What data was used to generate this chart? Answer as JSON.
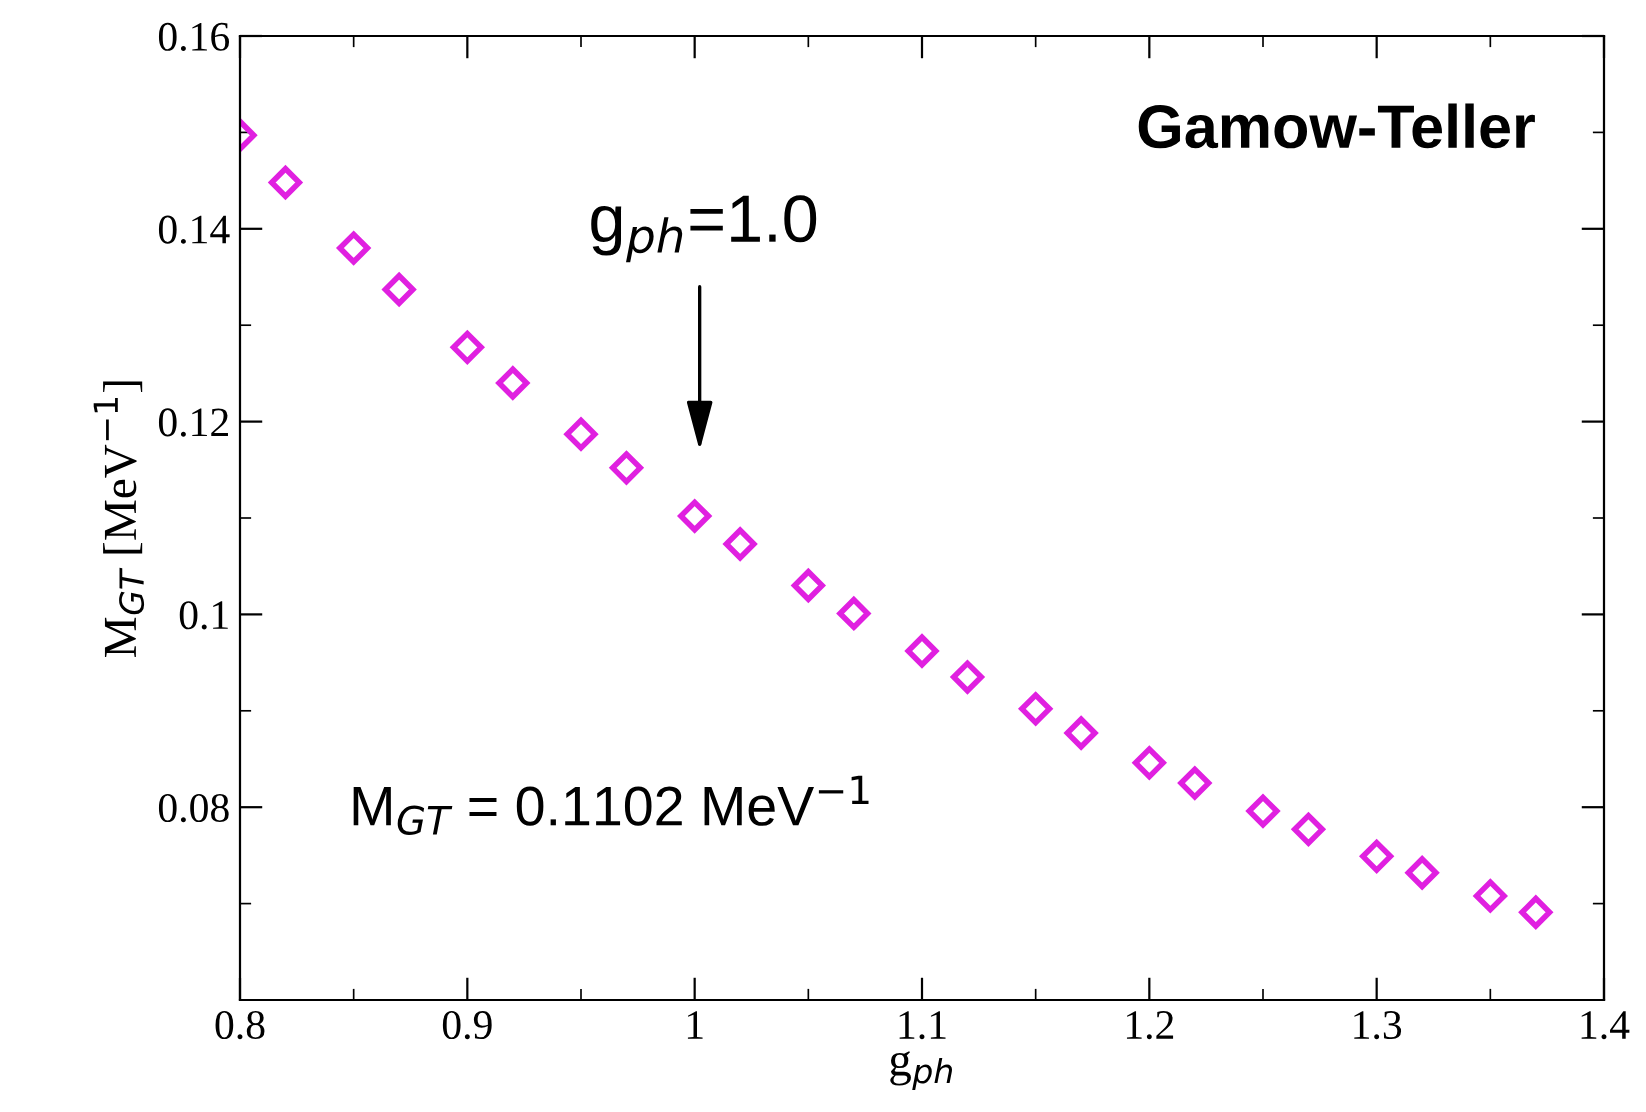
{
  "chart_data": {
    "type": "scatter",
    "xlabel": "g$_{ph}$",
    "ylabel": "M$_{GT}$ [MeV$^{−1}$]",
    "x": [
      0.8,
      0.82,
      0.85,
      0.87,
      0.9,
      0.92,
      0.95,
      0.97,
      1.0,
      1.02,
      1.05,
      1.07,
      1.1,
      1.12,
      1.15,
      1.17,
      1.2,
      1.22,
      1.25,
      1.27,
      1.3,
      1.32,
      1.35,
      1.37
    ],
    "series": [
      {
        "color": "#e020e0",
        "values": [
          0.1497,
          0.1448,
          0.138,
          0.1337,
          0.1277,
          0.124,
          0.1187,
          0.1152,
          0.1102,
          0.1073,
          0.103,
          0.1001,
          0.0962,
          0.0935,
          0.0902,
          0.0877,
          0.0846,
          0.0825,
          0.0796,
          0.0777,
          0.0749,
          0.0732,
          0.0708,
          0.0691
        ]
      }
    ],
    "marker": "diamond",
    "grid": false,
    "legend": false,
    "xlim": [
      0.8,
      1.4
    ],
    "xticks": [
      0.8,
      0.9,
      1,
      1.1,
      1.2,
      1.3,
      1.4
    ],
    "ylim": [
      0.06,
      0.16
    ],
    "yticks": [
      0.08,
      {
        "value": 0.1,
        "label": "0.1"
      },
      0.12,
      0.14,
      0.16
    ],
    "annotations": [
      "Gamow-Teller",
      "g$_{ph}$=1.0",
      "M$_{GT}$ = 0.1102 MeV$^{−1}$"
    ]
  }
}
